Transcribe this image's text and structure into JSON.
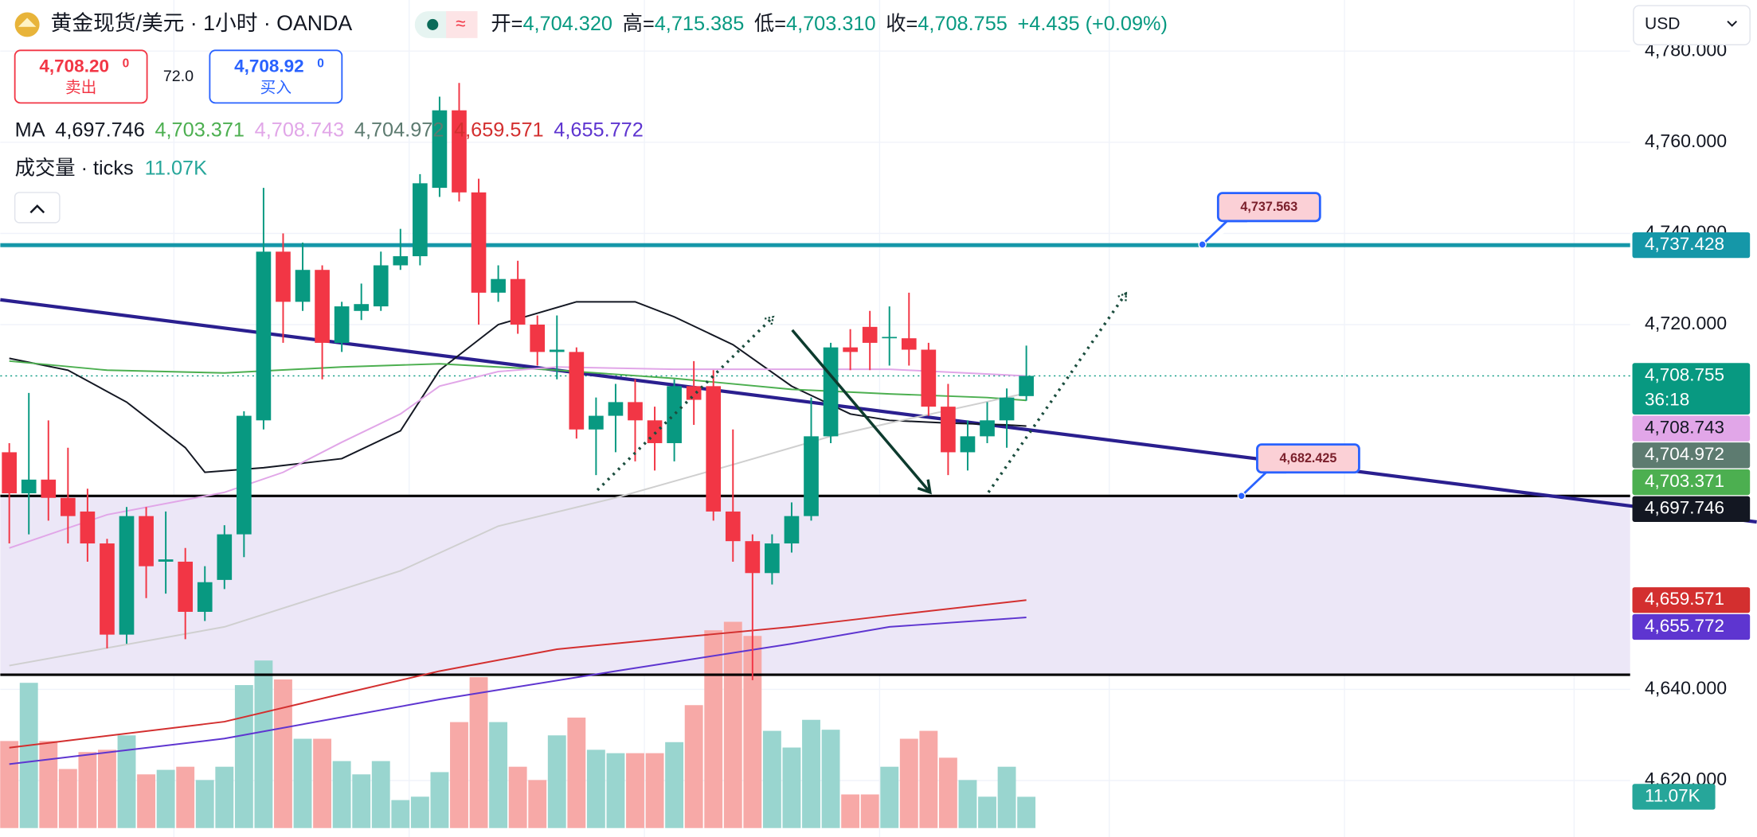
{
  "header": {
    "symbol": "黄金现货/美元 · 1小时 · OANDA",
    "badge": "≈",
    "ohlc": [
      {
        "label": "开=",
        "value": "4,704.320"
      },
      {
        "label": "高=",
        "value": "4,715.385"
      },
      {
        "label": "低=",
        "value": "4,703.310"
      },
      {
        "label": "收=",
        "value": "4,708.755"
      }
    ],
    "change": "+4.435 (+0.09%)",
    "currency": "USD"
  },
  "trade": {
    "sell_price": "4,708.20",
    "sell_sup": "0",
    "sell_label": "卖出",
    "spread": "72.0",
    "buy_price": "4,708.92",
    "buy_sup": "0",
    "buy_label": "买入"
  },
  "indicators": {
    "ma_label": "MA",
    "volume_label": "成交量 · ticks",
    "volume_value": "11.07K",
    "countdown": "36:18"
  },
  "chart_data": {
    "type": "candlestick",
    "categories": [
      null,
      null,
      null,
      null,
      null,
      null,
      null,
      null,
      null,
      null,
      null,
      null,
      null,
      null,
      null,
      null,
      null,
      null,
      null,
      null,
      null,
      null,
      null,
      null,
      null,
      null,
      null,
      null,
      null,
      null,
      null,
      null,
      null,
      null,
      null,
      null,
      null,
      null,
      null,
      null,
      null,
      null,
      null,
      null,
      null,
      null,
      null,
      null,
      null,
      null,
      null,
      null,
      null
    ],
    "open": [
      4692,
      4683,
      4686,
      4682,
      4679,
      4672,
      4652,
      4678,
      4668,
      4668,
      4657,
      4664,
      4674,
      4699,
      4736,
      4725,
      4732,
      4716,
      4723,
      4724,
      4733,
      4735,
      4750,
      4767,
      4749,
      4727,
      4730,
      4720,
      4714,
      4714,
      4697,
      4700,
      4703,
      4699,
      4694,
      4706.5,
      4706.5,
      4679,
      4672.5,
      4665.5,
      4672,
      4678,
      4695.5,
      4715,
      4719.5,
      4717,
      4717,
      4714.5,
      4702,
      4692,
      4695.5,
      4699,
      4704.32
    ],
    "high": [
      4694,
      4705,
      4699,
      4693,
      4684,
      4673,
      4680,
      4680,
      4679,
      4671,
      4667,
      4676,
      4701,
      4750,
      4740,
      4738,
      4733,
      4725,
      4729,
      4736,
      4741,
      4753,
      4770,
      4773,
      4752,
      4733,
      4734,
      4722,
      4722,
      4715,
      4704,
      4707,
      4708,
      4702,
      4708,
      4712,
      4710,
      4697,
      4674,
      4674,
      4681,
      4704,
      4716,
      4719,
      4723,
      4724,
      4727,
      4716,
      4707,
      4699,
      4703,
      4706,
      4715.385
    ],
    "low": [
      4672,
      4674,
      4677,
      4672,
      4668,
      4649,
      4650,
      4660,
      4661,
      4651,
      4655,
      4662,
      4669,
      4697,
      4716,
      4723,
      4708,
      4714,
      4721,
      4723,
      4732,
      4733,
      4748,
      4747,
      4720,
      4725,
      4718,
      4711,
      4708,
      4695,
      4687,
      4692,
      4690,
      4688,
      4690,
      4698,
      4677,
      4668,
      4642,
      4663,
      4670,
      4677,
      4694,
      4710,
      4710,
      4711,
      4711,
      4700,
      4687,
      4688,
      4694,
      4693,
      4703.31
    ],
    "close": [
      4683,
      4686,
      4682,
      4678,
      4672,
      4652,
      4678,
      4667,
      4668.5,
      4657,
      4663.5,
      4674,
      4700,
      4736,
      4725,
      4732,
      4716,
      4724,
      4724.5,
      4733,
      4735,
      4751,
      4767,
      4749,
      4727,
      4730,
      4720,
      4714,
      4714.5,
      4697,
      4700,
      4703,
      4699,
      4694,
      4706.5,
      4703.5,
      4679,
      4672.5,
      4665.5,
      4672,
      4678,
      4695.5,
      4715,
      4714,
      4716,
      4717.3,
      4714.5,
      4702,
      4692,
      4695.5,
      4699,
      4704,
      4708.755
    ],
    "up_color": "#089981",
    "down_color": "#f23645",
    "xlim": [
      -0.46,
      82.87
    ],
    "ylim": [
      4608.1,
      4791.2
    ],
    "yticks": [
      {
        "value": 4780,
        "label": "4,780.000"
      },
      {
        "value": 4760,
        "label": "4,760.000"
      },
      {
        "value": 4740,
        "label": "4,740.000"
      },
      {
        "value": 4720,
        "label": "4,720.000"
      },
      {
        "value": 4640,
        "label": "4,640.000"
      },
      {
        "value": 4620,
        "label": "4,620.000"
      }
    ],
    "grid": true,
    "volume": {
      "values": [
        30.8,
        51.4,
        30.8,
        20.9,
        26.9,
        27.7,
        32.8,
        19.0,
        20.6,
        21.7,
        17.0,
        21.7,
        50.6,
        59.3,
        52.6,
        31.6,
        31.6,
        23.7,
        19.0,
        23.7,
        9.9,
        11.1,
        19.8,
        37.5,
        53.4,
        37.5,
        21.7,
        17.0,
        32.8,
        39.1,
        27.7,
        26.5,
        26.5,
        26.5,
        30.4,
        43.5,
        70,
        73,
        68,
        34.4,
        28.5,
        38.3,
        34.8,
        11.9,
        11.9,
        21.7,
        31.6,
        34.4,
        24.9,
        17.0,
        11.1,
        21.7,
        11.07
      ],
      "ylim": [
        0,
        80
      ],
      "up_color": "#99d5cf",
      "down_color": "#f7a9a7",
      "tag_color": "#26a69a"
    },
    "ma_lines": [
      {
        "label": "4,697.746",
        "color": "#131722",
        "text_color": "#131722",
        "tag_color": "#131722",
        "tag_text": "#ffffff",
        "x": [
          0,
          3,
          6,
          9,
          10,
          13,
          17,
          20,
          22,
          25,
          29,
          32,
          34,
          37,
          40,
          43,
          45,
          48,
          51,
          52
        ],
        "values": [
          4712.6,
          4710,
          4703,
          4693,
          4687.6,
          4688.6,
          4690.6,
          4696.7,
          4710,
          4720,
          4725,
          4725,
          4721.7,
          4715.6,
          4706.5,
          4700.4,
          4699,
          4698.4,
          4698,
          4697.746
        ]
      },
      {
        "label": "4,703.371",
        "color": "#4caf50",
        "text_color": "#4caf50",
        "tag_color": "#4caf50",
        "tag_text": "#ffffff",
        "x": [
          0,
          5,
          11,
          17,
          22,
          28,
          34,
          40,
          45,
          50,
          52
        ],
        "values": [
          4712,
          4710,
          4709.4,
          4710.7,
          4711.4,
          4710,
          4708.2,
          4705.8,
          4704.8,
          4704,
          4703.371
        ]
      },
      {
        "label": "4,708.743",
        "color": "#e1a6e8",
        "text_color": "#e1a6e8",
        "tag_color": "#e1a6e8",
        "tag_text": "#131722",
        "x": [
          0,
          5,
          11,
          14,
          17,
          20,
          22,
          25,
          28,
          34,
          40,
          45,
          52
        ],
        "values": [
          4671,
          4678.3,
          4683.2,
          4687.6,
          4694.2,
          4700.4,
          4706.5,
          4709.7,
          4710.7,
          4710.2,
          4710.2,
          4710.2,
          4708.743
        ]
      },
      {
        "label": "4,704.972",
        "color": "#cfcfcf",
        "text_color": "#5d7b70",
        "tag_color": "#5d7b70",
        "tag_text": "#ffffff",
        "x": [
          0,
          11,
          20,
          25,
          31,
          37,
          42,
          45,
          52
        ],
        "values": [
          4645.2,
          4653.7,
          4666,
          4675.8,
          4682,
          4689.3,
          4695.5,
          4698.4,
          4704.972
        ]
      },
      {
        "label": "4,659.571",
        "color": "#d32f2f",
        "text_color": "#d32f2f",
        "tag_color": "#d32f2f",
        "tag_text": "#ffffff",
        "x": [
          0,
          11,
          17,
          22,
          28,
          34,
          40,
          45,
          52
        ],
        "values": [
          4627.2,
          4632.9,
          4639,
          4644,
          4648.8,
          4651.3,
          4653.7,
          4656.2,
          4659.571
        ]
      },
      {
        "label": "4,655.772",
        "color": "#5e35d0",
        "text_color": "#5e35d0",
        "tag_color": "#5e35d0",
        "tag_text": "#ffffff",
        "x": [
          0,
          11,
          22,
          31,
          40,
          45,
          52
        ],
        "values": [
          4623.6,
          4629.2,
          4637.8,
          4644,
          4650,
          4653.7,
          4655.772
        ]
      }
    ],
    "last_price_color": "#089981",
    "drawings": {
      "hlines": [
        {
          "value": 4737.428,
          "label": "4,737.428",
          "color": "#1597a8",
          "width": 3.5
        },
        {
          "value": 4682.425,
          "color": "#000000",
          "width": 2.2
        },
        {
          "value": 4643.2,
          "color": "#000000",
          "width": 2.2
        }
      ],
      "zone": {
        "from": 1,
        "to": 2,
        "color": "#ece7f7"
      },
      "trendline": {
        "color": "#2a1f8f",
        "points": [
          {
            "x": 0,
            "value": 4725.2
          },
          {
            "x": 82,
            "value": 4680.7
          }
        ]
      },
      "arrows": [
        {
          "style": "dotted",
          "color": "#1b4d3e",
          "points": [
            {
              "x": 30.07,
              "value": 4683.7
            },
            {
              "x": 39.06,
              "value": 4721.7
            }
          ]
        },
        {
          "style": "solid",
          "color": "#0d3b2e",
          "points": [
            {
              "x": 40.03,
              "value": 4718.8
            },
            {
              "x": 47.08,
              "value": 4683.2
            }
          ]
        },
        {
          "style": "dotted",
          "color": "#1b4d3e",
          "points": [
            {
              "x": 50.06,
              "value": 4683.2
            },
            {
              "x": 57.1,
              "value": 4726.9
            }
          ]
        }
      ],
      "callouts": [
        {
          "label": "4,737.563",
          "x": 61.0,
          "value": 4737.563
        },
        {
          "label": "4,682.425",
          "x": 63.0,
          "value": 4682.425
        }
      ]
    }
  }
}
